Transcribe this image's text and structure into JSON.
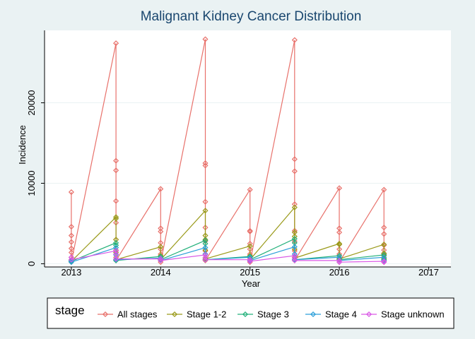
{
  "chart_data": {
    "type": "line",
    "title": "Malignant Kidney Cancer Distribution",
    "xlabel": "Year",
    "ylabel": "Incidence",
    "xlim": [
      2012.7,
      2017.25
    ],
    "ylim": [
      -400,
      29000
    ],
    "x_ticks": [
      2013,
      2014,
      2015,
      2016,
      2017
    ],
    "y_ticks": [
      0,
      10000,
      20000
    ],
    "grid": true,
    "legend": {
      "title": "stage",
      "position": "bottom"
    },
    "series": [
      {
        "name": "All stages",
        "color": "#e8716b",
        "points": [
          [
            2013,
            8900
          ],
          [
            2013,
            4600
          ],
          [
            2013,
            3500
          ],
          [
            2013,
            2700
          ],
          [
            2013,
            1900
          ],
          [
            2013,
            1400
          ],
          [
            2013,
            800
          ],
          [
            2013,
            400
          ],
          [
            2013,
            200
          ],
          [
            2013.5,
            27400
          ],
          [
            2013.5,
            12800
          ],
          [
            2013.5,
            11600
          ],
          [
            2013.5,
            7800
          ],
          [
            2013.5,
            5100
          ],
          [
            2013.5,
            3000
          ],
          [
            2013.5,
            1700
          ],
          [
            2013.5,
            800
          ],
          [
            2013.5,
            400
          ],
          [
            2014,
            9300
          ],
          [
            2014,
            4400
          ],
          [
            2014,
            4000
          ],
          [
            2014,
            2600
          ],
          [
            2014,
            1800
          ],
          [
            2014,
            1200
          ],
          [
            2014,
            700
          ],
          [
            2014,
            400
          ],
          [
            2014,
            200
          ],
          [
            2014.5,
            27900
          ],
          [
            2014.5,
            12500
          ],
          [
            2014.5,
            12200
          ],
          [
            2014.5,
            7700
          ],
          [
            2014.5,
            4500
          ],
          [
            2014.5,
            2800
          ],
          [
            2014.5,
            1600
          ],
          [
            2014.5,
            800
          ],
          [
            2014.5,
            400
          ],
          [
            2015,
            9200
          ],
          [
            2015,
            4100
          ],
          [
            2015,
            4000
          ],
          [
            2015,
            2500
          ],
          [
            2015,
            1800
          ],
          [
            2015,
            1200
          ],
          [
            2015,
            700
          ],
          [
            2015,
            400
          ],
          [
            2015,
            200
          ],
          [
            2015.5,
            27800
          ],
          [
            2015.5,
            13000
          ],
          [
            2015.5,
            11500
          ],
          [
            2015.5,
            7400
          ],
          [
            2015.5,
            4100
          ],
          [
            2015.5,
            2800
          ],
          [
            2015.5,
            1600
          ],
          [
            2015.5,
            800
          ],
          [
            2015.5,
            400
          ],
          [
            2016,
            9400
          ],
          [
            2016,
            4400
          ],
          [
            2016,
            3900
          ],
          [
            2016,
            2400
          ],
          [
            2016,
            1800
          ],
          [
            2016,
            1200
          ],
          [
            2016,
            700
          ],
          [
            2016,
            400
          ],
          [
            2016,
            200
          ],
          [
            2016.5,
            9200
          ],
          [
            2016.5,
            4500
          ],
          [
            2016.5,
            3700
          ],
          [
            2016.5,
            2300
          ],
          [
            2016.5,
            1700
          ],
          [
            2016.5,
            1200
          ],
          [
            2016.5,
            700
          ],
          [
            2016.5,
            400
          ],
          [
            2016.5,
            200
          ]
        ]
      },
      {
        "name": "Stage 1-2",
        "color": "#9a9a1a",
        "points": [
          [
            2013,
            500
          ],
          [
            2013,
            300
          ],
          [
            2013.5,
            5800
          ],
          [
            2013.5,
            5600
          ],
          [
            2013.5,
            3000
          ],
          [
            2013.5,
            1400
          ],
          [
            2013.5,
            500
          ],
          [
            2014,
            2100
          ],
          [
            2014,
            1000
          ],
          [
            2014,
            500
          ],
          [
            2014.5,
            6600
          ],
          [
            2014.5,
            3500
          ],
          [
            2014.5,
            3000
          ],
          [
            2014.5,
            1700
          ],
          [
            2014.5,
            600
          ],
          [
            2015,
            2200
          ],
          [
            2015,
            1000
          ],
          [
            2015,
            500
          ],
          [
            2015.5,
            7000
          ],
          [
            2015.5,
            3900
          ],
          [
            2015.5,
            3400
          ],
          [
            2015.5,
            1800
          ],
          [
            2015.5,
            700
          ],
          [
            2016,
            2500
          ],
          [
            2016,
            2400
          ],
          [
            2016,
            600
          ],
          [
            2016.5,
            2400
          ],
          [
            2016.5,
            1300
          ],
          [
            2016.5,
            1000
          ],
          [
            2016.5,
            600
          ]
        ]
      },
      {
        "name": "Stage 3",
        "color": "#22b07a",
        "points": [
          [
            2013,
            500
          ],
          [
            2013,
            300
          ],
          [
            2013.5,
            2600
          ],
          [
            2013.5,
            2300
          ],
          [
            2013.5,
            400
          ],
          [
            2014,
            900
          ],
          [
            2014,
            500
          ],
          [
            2014.5,
            2900
          ],
          [
            2014.5,
            2500
          ],
          [
            2014.5,
            500
          ],
          [
            2015,
            900
          ],
          [
            2015,
            500
          ],
          [
            2015.5,
            3100
          ],
          [
            2015.5,
            2600
          ],
          [
            2015.5,
            500
          ],
          [
            2016,
            1000
          ],
          [
            2016,
            500
          ],
          [
            2016.5,
            1100
          ],
          [
            2016.5,
            500
          ]
        ]
      },
      {
        "name": "Stage 4",
        "color": "#2c9fd9",
        "points": [
          [
            2013,
            400
          ],
          [
            2013,
            200
          ],
          [
            2013.5,
            2000
          ],
          [
            2013.5,
            1100
          ],
          [
            2013.5,
            500
          ],
          [
            2014,
            700
          ],
          [
            2014,
            400
          ],
          [
            2014.5,
            2000
          ],
          [
            2014.5,
            1200
          ],
          [
            2014.5,
            500
          ],
          [
            2015,
            800
          ],
          [
            2015,
            400
          ],
          [
            2015.5,
            2100
          ],
          [
            2015.5,
            1200
          ],
          [
            2015.5,
            500
          ],
          [
            2016,
            800
          ],
          [
            2016,
            400
          ],
          [
            2016.5,
            800
          ],
          [
            2016.5,
            400
          ]
        ]
      },
      {
        "name": "Stage unknown",
        "color": "#d957e5",
        "points": [
          [
            2013,
            800
          ],
          [
            2013,
            500
          ],
          [
            2013.5,
            1600
          ],
          [
            2013.5,
            1200
          ],
          [
            2013.5,
            600
          ],
          [
            2014,
            600
          ],
          [
            2014,
            400
          ],
          [
            2014.5,
            1100
          ],
          [
            2014.5,
            800
          ],
          [
            2014.5,
            500
          ],
          [
            2015,
            500
          ],
          [
            2015,
            300
          ],
          [
            2015.5,
            1000
          ],
          [
            2015.5,
            700
          ],
          [
            2015.5,
            400
          ],
          [
            2016,
            400
          ],
          [
            2016,
            200
          ],
          [
            2016.5,
            300
          ],
          [
            2016.5,
            200
          ]
        ]
      }
    ]
  }
}
